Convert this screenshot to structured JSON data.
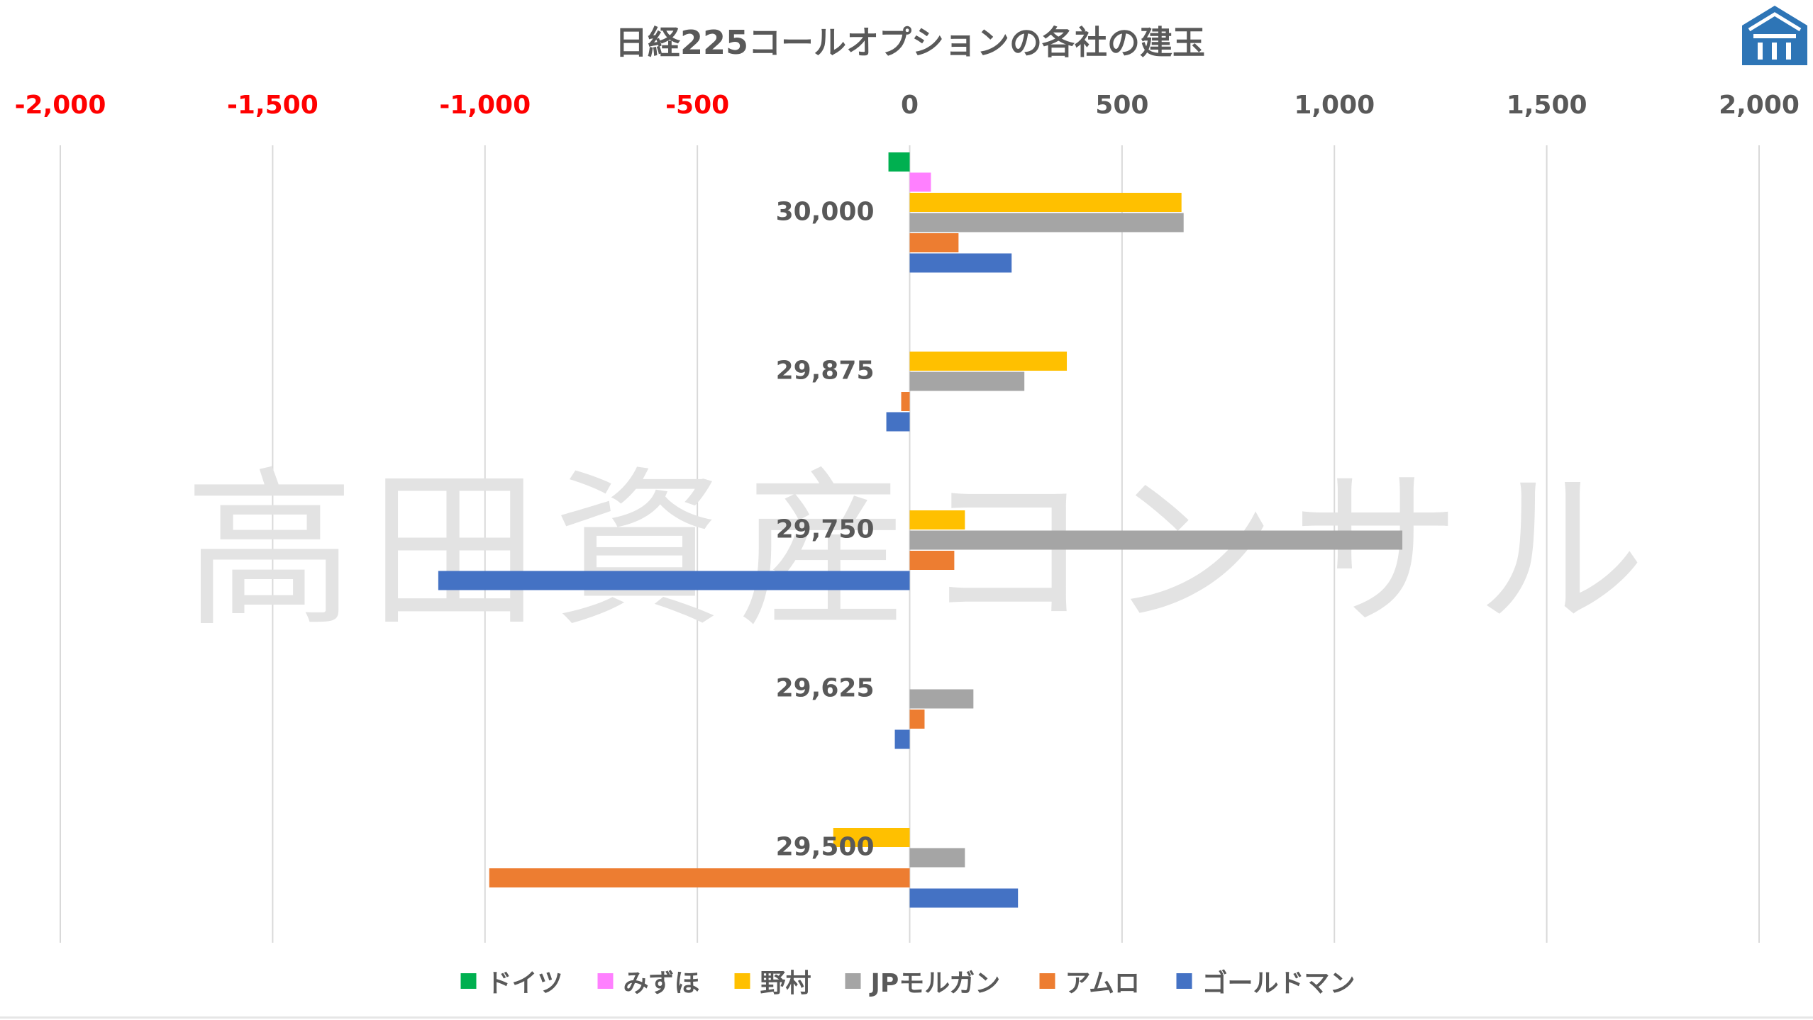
{
  "colors": {
    "grid": "#d9d9d9",
    "negative_tick": "#ff0000",
    "positive_tick": "#595959",
    "text": "#595959",
    "watermark": "#e3e3e3",
    "logo": "#2e75b6"
  },
  "watermark": "高田資産コンサル",
  "logo": {
    "name": "building-logo-icon"
  },
  "chart_data": {
    "type": "bar",
    "orientation": "horizontal",
    "title": "日経225コールオプションの各社の建玉",
    "xlim": [
      -2000,
      2000
    ],
    "x_ticks": [
      -2000,
      -1500,
      -1000,
      -500,
      0,
      500,
      1000,
      1500,
      2000
    ],
    "x_tick_labels": [
      "-2,000",
      "-1,500",
      "-1,000",
      "-500",
      "0",
      "500",
      "1,000",
      "1,500",
      "2,000"
    ],
    "x_axis_position": "top",
    "grid": true,
    "legend_position": "bottom",
    "categories": [
      "30,000",
      "29,875",
      "29,750",
      "29,625",
      "29,500"
    ],
    "series": [
      {
        "name": "ドイツ",
        "color": "#00b050",
        "values": [
          -50,
          0,
          0,
          0,
          0
        ]
      },
      {
        "name": "みずほ",
        "color": "#ff80ff",
        "values": [
          50,
          0,
          0,
          0,
          0
        ]
      },
      {
        "name": "野村",
        "color": "#ffc000",
        "values": [
          640,
          370,
          130,
          0,
          -180
        ]
      },
      {
        "name": "JPモルガン",
        "color": "#a5a5a5",
        "values": [
          645,
          270,
          1160,
          150,
          130
        ]
      },
      {
        "name": "アムロ",
        "color": "#ed7d31",
        "values": [
          115,
          -20,
          105,
          35,
          -990
        ]
      },
      {
        "name": "ゴールドマン",
        "color": "#4472c4",
        "values": [
          240,
          -55,
          -1110,
          -35,
          255
        ]
      }
    ]
  }
}
